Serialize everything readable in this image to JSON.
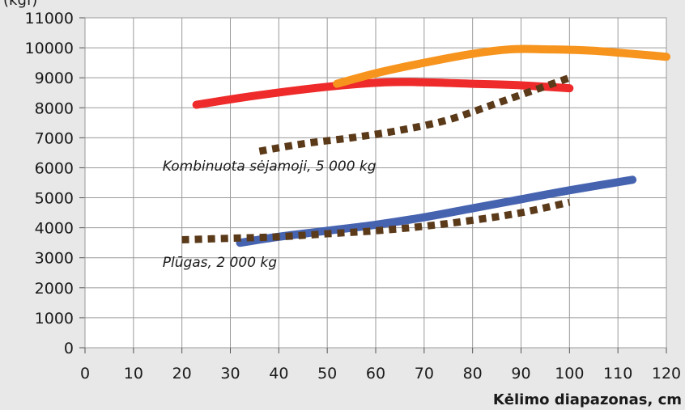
{
  "chart_data": {
    "type": "line",
    "xlabel": "Kėlimo diapazonas, cm",
    "ylabel_fragment": "(kgf)",
    "xlim": [
      0,
      120
    ],
    "ylim": [
      0,
      11000
    ],
    "x_ticks": [
      0,
      10,
      20,
      30,
      40,
      50,
      60,
      70,
      80,
      90,
      100,
      110,
      120
    ],
    "y_ticks": [
      0,
      1000,
      2000,
      3000,
      4000,
      5000,
      6000,
      7000,
      8000,
      9000,
      10000,
      11000
    ],
    "grid": true,
    "series": [
      {
        "color": "#ee2a2a",
        "style": "solid",
        "points": [
          [
            23,
            8100
          ],
          [
            35,
            8400
          ],
          [
            50,
            8700
          ],
          [
            62,
            8850
          ],
          [
            70,
            8850
          ],
          [
            80,
            8800
          ],
          [
            90,
            8750
          ],
          [
            100,
            8650
          ]
        ]
      },
      {
        "color": "#f7941d",
        "style": "solid",
        "points": [
          [
            52,
            8800
          ],
          [
            60,
            9150
          ],
          [
            70,
            9500
          ],
          [
            80,
            9800
          ],
          [
            88,
            9950
          ],
          [
            95,
            9950
          ],
          [
            105,
            9900
          ],
          [
            120,
            9700
          ]
        ]
      },
      {
        "color": "#5b3a1a",
        "style": "dotted",
        "points": [
          [
            36,
            6550
          ],
          [
            45,
            6800
          ],
          [
            55,
            7000
          ],
          [
            65,
            7250
          ],
          [
            75,
            7600
          ],
          [
            85,
            8150
          ],
          [
            100,
            9000
          ]
        ]
      },
      {
        "color": "#4663b0",
        "style": "solid",
        "points": [
          [
            32,
            3500
          ],
          [
            40,
            3700
          ],
          [
            50,
            3900
          ],
          [
            60,
            4100
          ],
          [
            70,
            4350
          ],
          [
            80,
            4650
          ],
          [
            90,
            4950
          ],
          [
            100,
            5250
          ],
          [
            113,
            5600
          ]
        ]
      },
      {
        "color": "#5b3a1a",
        "style": "dotted",
        "points": [
          [
            20,
            3600
          ],
          [
            30,
            3650
          ],
          [
            40,
            3700
          ],
          [
            50,
            3800
          ],
          [
            60,
            3900
          ],
          [
            70,
            4050
          ],
          [
            80,
            4250
          ],
          [
            90,
            4500
          ],
          [
            100,
            4850
          ]
        ]
      }
    ],
    "annotations": [
      {
        "text": "Kombinuota sėjamoji, 5 000 kg",
        "x": 16,
        "y": 5900
      },
      {
        "text": "Plūgas, 2 000 kg",
        "x": 16,
        "y": 2700
      }
    ]
  }
}
